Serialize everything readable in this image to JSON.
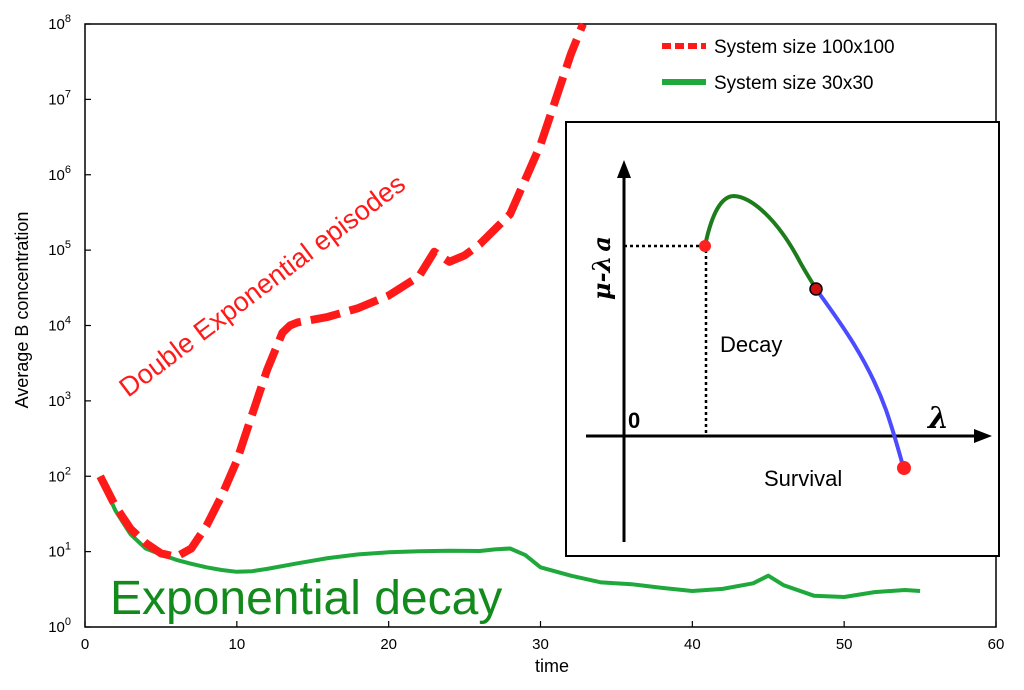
{
  "chart_data": {
    "type": "line",
    "xlabel": "time",
    "ylabel": "Average B concentration",
    "xlim": [
      0,
      60
    ],
    "ylim": [
      1,
      100000000
    ],
    "yscale": "log",
    "x_ticks": [
      "0",
      "10",
      "20",
      "30",
      "40",
      "50",
      "60"
    ],
    "y_ticks": [
      {
        "base": "10",
        "exp": "0"
      },
      {
        "base": "10",
        "exp": "1"
      },
      {
        "base": "10",
        "exp": "2"
      },
      {
        "base": "10",
        "exp": "3"
      },
      {
        "base": "10",
        "exp": "4"
      },
      {
        "base": "10",
        "exp": "5"
      },
      {
        "base": "10",
        "exp": "6"
      },
      {
        "base": "10",
        "exp": "7"
      },
      {
        "base": "10",
        "exp": "8"
      }
    ],
    "legend_position": "top-right",
    "series": [
      {
        "name": "System size 100x100",
        "color": "#ff1a1a",
        "style": "dashed",
        "x": [
          1,
          2,
          3,
          4,
          5,
          6,
          7,
          8,
          9,
          10,
          11,
          12,
          13,
          13.5,
          14,
          16,
          18,
          20,
          22,
          23,
          24,
          25,
          26,
          28,
          30,
          31,
          32,
          32.8
        ],
        "y": [
          100,
          40,
          20,
          13,
          9.5,
          8.5,
          11,
          22,
          55,
          160,
          650,
          2600,
          8000,
          10000,
          11000,
          13000,
          17000,
          25000,
          45000,
          95000,
          70000,
          85000,
          120000,
          300000,
          2500000,
          10000000,
          40000000,
          100000000
        ]
      },
      {
        "name": "System size 30x30",
        "color": "#1fa93c",
        "style": "solid",
        "x": [
          1,
          2,
          3,
          4,
          5,
          6,
          7,
          8,
          9,
          10,
          11,
          12,
          14,
          16,
          18,
          20,
          22,
          24,
          26,
          27,
          28,
          29,
          30,
          32,
          34,
          36,
          38,
          40,
          42,
          44,
          45,
          46,
          48,
          50,
          52,
          54,
          55
        ],
        "y": [
          100,
          35,
          17,
          11,
          9.2,
          7.8,
          6.9,
          6.2,
          5.7,
          5.4,
          5.5,
          5.9,
          7.0,
          8.2,
          9.2,
          9.8,
          10.1,
          10.3,
          10.2,
          10.7,
          11.0,
          9.0,
          6.2,
          4.8,
          3.9,
          3.7,
          3.3,
          3.0,
          3.2,
          3.8,
          4.8,
          3.6,
          2.6,
          2.5,
          2.9,
          3.1,
          3.0
        ]
      }
    ],
    "annotations": {
      "red": "Double Exponential episodes",
      "green": "Exponential decay"
    },
    "inset": {
      "y_label_mu": "μ-",
      "y_label_lambda": "λ",
      "y_label_a": "a",
      "x_label": "λ",
      "origin_label": "0",
      "decay_label": "Decay",
      "survival_label": "Survival",
      "colors": {
        "rise": "#1d7d1d",
        "tail": "#4b4bff",
        "point": "#ff2020",
        "dark_point": "#cc1111"
      }
    }
  }
}
